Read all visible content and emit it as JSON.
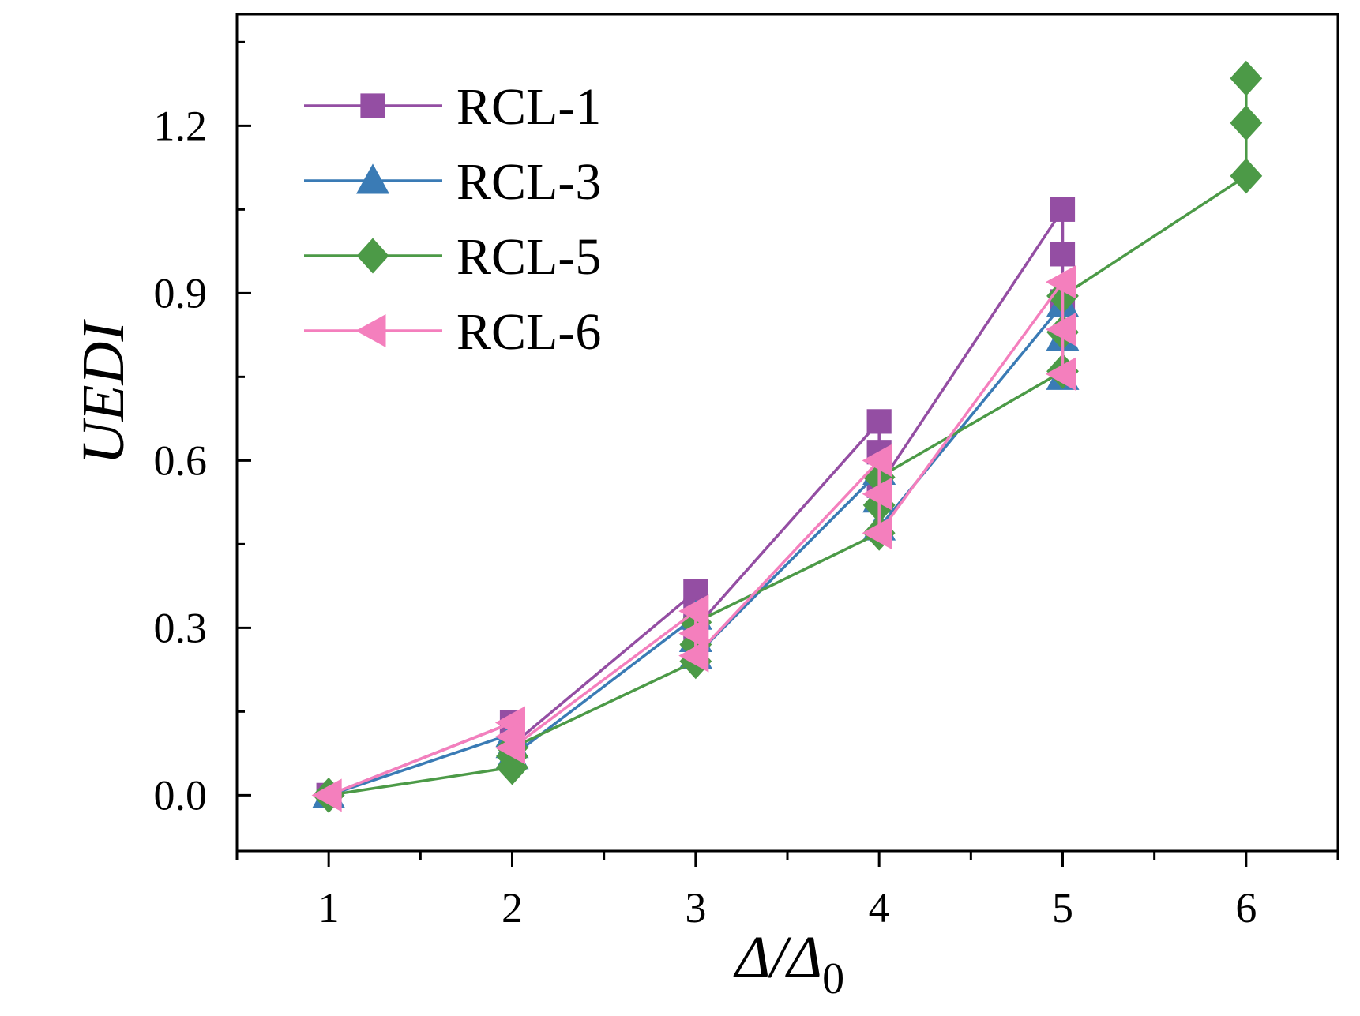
{
  "chart_data": {
    "type": "line",
    "title": "",
    "xlabel": {
      "main": "Δ/Δ",
      "subscript": "0"
    },
    "ylabel": "UEDI",
    "xlim": [
      0.5,
      6.5
    ],
    "ylim": [
      -0.1,
      1.4
    ],
    "xticks": [
      "1",
      "2",
      "3",
      "4",
      "5",
      "6"
    ],
    "yticks": [
      "0.0",
      "0.3",
      "0.6",
      "0.9",
      "1.2"
    ],
    "legend_position": "top-left",
    "series": [
      {
        "name": "RCL-1",
        "color": "#944ea3",
        "marker": "square",
        "points": [
          [
            1,
            0.0
          ],
          [
            2,
            0.13
          ],
          [
            2,
            0.11
          ],
          [
            2,
            0.09
          ],
          [
            3,
            0.365
          ],
          [
            3,
            0.33
          ],
          [
            3,
            0.3
          ],
          [
            4,
            0.67
          ],
          [
            4,
            0.615
          ],
          [
            4,
            0.555
          ],
          [
            5,
            1.05
          ],
          [
            5,
            0.97
          ],
          [
            5,
            0.885
          ]
        ]
      },
      {
        "name": "RCL-3",
        "color": "#3a7bb5",
        "marker": "triangle-up",
        "points": [
          [
            1,
            0.0
          ],
          [
            2,
            0.11
          ],
          [
            2,
            0.09
          ],
          [
            2,
            0.07
          ],
          [
            3,
            0.32
          ],
          [
            3,
            0.28
          ],
          [
            3,
            0.25
          ],
          [
            4,
            0.58
          ],
          [
            4,
            0.53
          ],
          [
            4,
            0.48
          ],
          [
            5,
            0.88
          ],
          [
            5,
            0.82
          ],
          [
            5,
            0.75
          ]
        ]
      },
      {
        "name": "RCL-5",
        "color": "#4c9a47",
        "marker": "diamond",
        "points": [
          [
            1,
            0.0
          ],
          [
            2,
            0.05
          ],
          [
            2,
            0.07
          ],
          [
            2,
            0.085
          ],
          [
            3,
            0.24
          ],
          [
            3,
            0.27
          ],
          [
            3,
            0.31
          ],
          [
            4,
            0.47
          ],
          [
            4,
            0.52
          ],
          [
            4,
            0.57
          ],
          [
            5,
            0.76
          ],
          [
            5,
            0.83
          ],
          [
            5,
            0.895
          ],
          [
            6,
            1.11
          ],
          [
            6,
            1.205
          ],
          [
            6,
            1.285
          ]
        ]
      },
      {
        "name": "RCL-6",
        "color": "#f47fbd",
        "marker": "triangle-left",
        "points": [
          [
            1,
            0.0
          ],
          [
            2,
            0.13
          ],
          [
            2,
            0.105
          ],
          [
            2,
            0.085
          ],
          [
            3,
            0.33
          ],
          [
            3,
            0.29
          ],
          [
            3,
            0.25
          ],
          [
            4,
            0.6
          ],
          [
            4,
            0.54
          ],
          [
            4,
            0.47
          ],
          [
            5,
            0.92
          ],
          [
            5,
            0.835
          ],
          [
            5,
            0.755
          ]
        ]
      }
    ]
  }
}
